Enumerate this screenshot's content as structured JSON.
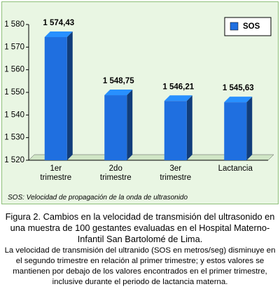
{
  "chart_data": {
    "type": "bar",
    "categories": [
      "1er trimestre",
      "2do trimestre",
      "3er trimestre",
      "Lactancia"
    ],
    "series": [
      {
        "name": "SOS",
        "color": "#1f6fe0",
        "values": [
          1574.43,
          1548.75,
          1546.21,
          1545.63
        ],
        "value_labels": [
          "1 574,43",
          "1 548,75",
          "1 546,21",
          "1 545,63"
        ]
      }
    ],
    "ylim": [
      1520,
      1580
    ],
    "yticks": [
      {
        "value": 1520,
        "label": "1 520"
      },
      {
        "value": 1530,
        "label": "1 530"
      },
      {
        "value": 1540,
        "label": "1 540"
      },
      {
        "value": 1550,
        "label": "1 550"
      },
      {
        "value": 1560,
        "label": "1 560"
      },
      {
        "value": 1570,
        "label": "1 570"
      },
      {
        "value": 1580,
        "label": "1 580"
      }
    ],
    "legend": "top-right",
    "note": "SOS: Velocidad de propagación de la onda de ultrasonido"
  },
  "caption": {
    "title": "Figura 2. Cambios en la velocidad de transmisión del ultrasonido en una muestra de 100 gestantes evaluadas en el Hospital Materno-Infantil San Bartolomé de Lima.",
    "text": "La velocidad de transmisión del ultranido (SOS en metros/seg) disminuye en el segundo trimestre en relación al primer trimestre; y estos valores se mantienen por debajo de los valores encontrados en el primer trimestre, inclusive durante el periodo de lactancia materna."
  }
}
